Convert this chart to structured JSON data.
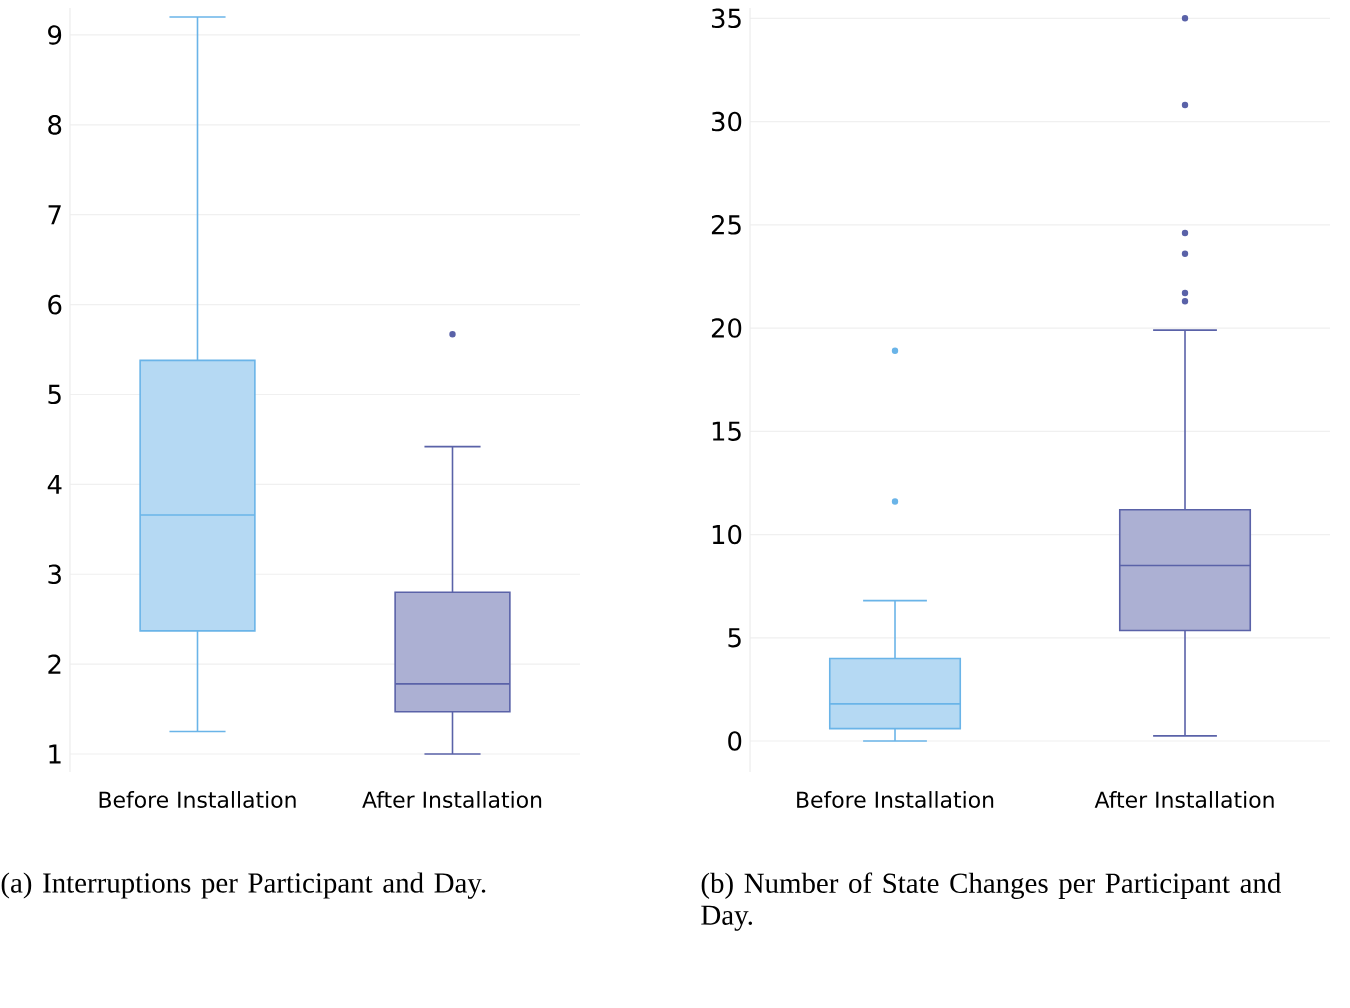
{
  "chart_data": [
    {
      "type": "box",
      "categories": [
        "Before Installation",
        "After Installation"
      ],
      "colors": [
        "#6ab4e8",
        "#5a62a8"
      ],
      "boxes": [
        {
          "low": 1.25,
          "q1": 2.37,
          "median": 3.66,
          "q3": 5.38,
          "high": 9.2
        },
        {
          "low": 1.0,
          "q1": 1.47,
          "median": 1.78,
          "q3": 2.8,
          "high": 4.42,
          "outliers": [
            5.67
          ]
        }
      ],
      "ylim": [
        0.8,
        9.3
      ],
      "yticks": [
        1,
        2,
        3,
        4,
        5,
        6,
        7,
        8,
        9
      ],
      "grid": "y",
      "annotations": [
        "(a) Interruptions per Participant and Day."
      ]
    },
    {
      "type": "box",
      "categories": [
        "Before Installation",
        "After Installation"
      ],
      "colors": [
        "#6ab4e8",
        "#5a62a8"
      ],
      "boxes": [
        {
          "low": 0,
          "q1": 0.6,
          "median": 1.8,
          "q3": 4.0,
          "high": 6.8,
          "outliers": [
            11.6,
            18.9
          ]
        },
        {
          "low": 0.25,
          "q1": 5.35,
          "median": 8.5,
          "q3": 11.2,
          "high": 19.9,
          "outliers": [
            21.3,
            21.7,
            23.6,
            24.6,
            30.8,
            35.0
          ]
        }
      ],
      "ylim": [
        -1.5,
        35.5
      ],
      "yticks": [
        0,
        5,
        10,
        15,
        20,
        25,
        30,
        35
      ],
      "grid": "y",
      "annotations": [
        "(b) Number of State Changes per Participant and Day."
      ]
    }
  ]
}
